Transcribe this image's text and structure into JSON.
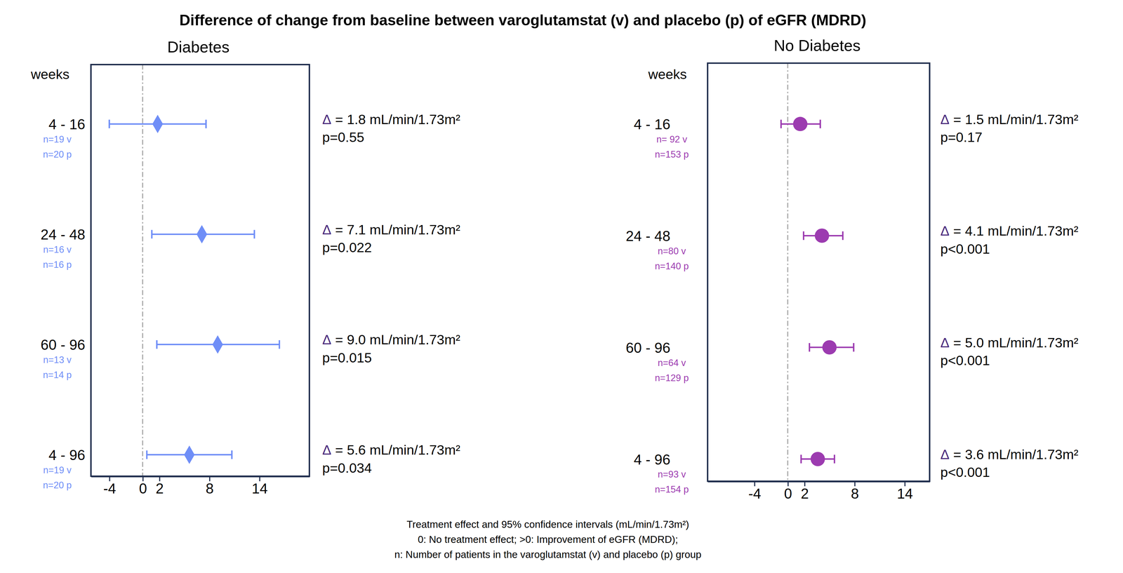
{
  "title": "Difference of change from baseline between varoglutamstat (v) and placebo (p) of eGFR (MDRD)",
  "notes": [
    "Treatment effect and 95% confidence intervals (mL/min/1.73m²)",
    "0: No treatment effect; >0: Improvement of eGFR (MDRD);",
    "n: Number of patients in the varoglutamstat (v) and placebo (p) group"
  ],
  "chart_data": [
    {
      "type": "forest",
      "title": "Diabetes",
      "y_label": "weeks",
      "categories": [
        "4 - 16",
        "24 - 48",
        "60 - 96",
        "4 - 96"
      ],
      "n_labels": [
        [
          "n=19 v",
          "n=20 p"
        ],
        [
          "n=16 v",
          "n=16 p"
        ],
        [
          "n=13 v",
          "n=14 p"
        ],
        [
          "n=19 v",
          "n=20 p"
        ]
      ],
      "values": [
        1.8,
        7.1,
        9.0,
        5.6
      ],
      "ci_low": [
        -4.0,
        1.1,
        1.7,
        0.5
      ],
      "ci_high": [
        7.6,
        13.4,
        16.4,
        10.7
      ],
      "value_labels": [
        "Δ = 1.8 mL/min/1.73m²",
        "Δ = 7.1 mL/min/1.73m²",
        "Δ = 9.0 mL/min/1.73m²",
        "Δ = 5.6 mL/min/1.73m²"
      ],
      "p_labels": [
        "p=0.55",
        "p=0.022",
        "p=0.015",
        "p=0.034"
      ],
      "reference": 0,
      "color": "#6f8ef7",
      "marker": "diamond",
      "data_labels": true,
      "xlim": [
        -6.2,
        20
      ],
      "xticks": [
        -4,
        0,
        2,
        8,
        14
      ]
    },
    {
      "type": "forest",
      "title": "No Diabetes",
      "y_label": "weeks",
      "categories": [
        "4 - 16",
        "24 - 48",
        "60 - 96",
        "4 - 96"
      ],
      "n_labels": [
        [
          "n= 92 v",
          "n=153 p"
        ],
        [
          "n=80 v",
          "n=140 p"
        ],
        [
          "n=64 v",
          "n=129 p"
        ],
        [
          "n=93 v",
          "n=154 p"
        ]
      ],
      "values": [
        1.5,
        4.1,
        5.0,
        3.6
      ],
      "ci_low": [
        -0.8,
        1.9,
        2.6,
        1.6
      ],
      "ci_high": [
        3.9,
        6.6,
        7.9,
        5.6
      ],
      "value_labels": [
        "Δ = 1.5 mL/min/1.73m²",
        "Δ = 4.1 mL/min/1.73m²",
        "Δ = 5.0 mL/min/1.73m²",
        "Δ = 3.6 mL/min/1.73m²"
      ],
      "p_labels": [
        "p=0.17",
        "p<0.001",
        "p<0.001",
        "p<0.001"
      ],
      "reference": 0,
      "color": "#9c3bb0",
      "marker": "circle",
      "data_labels": true,
      "xlim": [
        -9.6,
        17
      ],
      "xticks": [
        -4,
        0,
        2,
        8,
        14
      ]
    }
  ]
}
